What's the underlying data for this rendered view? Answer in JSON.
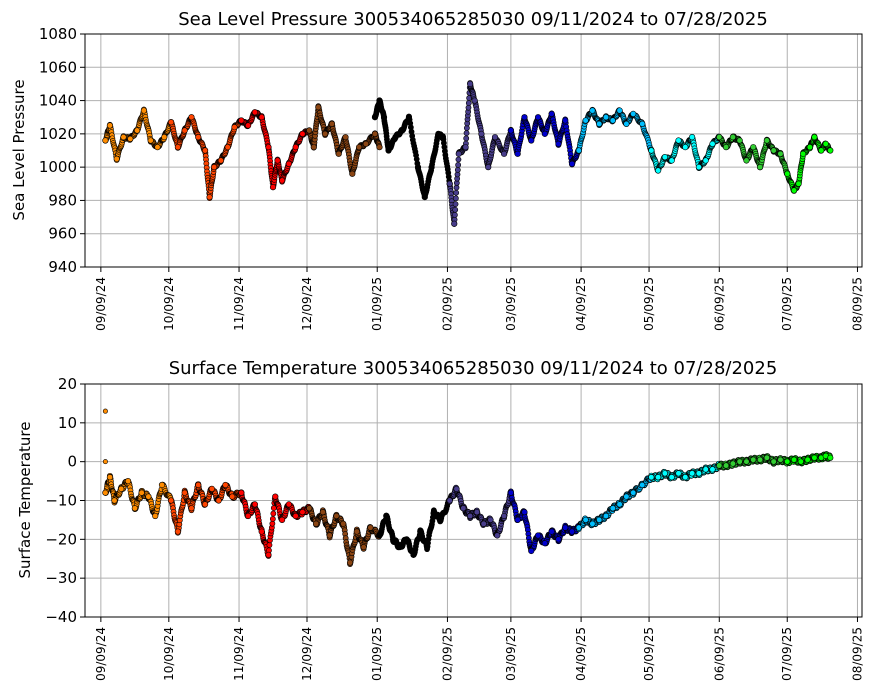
{
  "chart_data": [
    {
      "type": "scatter",
      "title": "Sea Level Pressure 300534065285030  09/11/2024 to 07/28/2025",
      "xlabel": "",
      "ylabel": "Sea Level Pressure",
      "ylim": [
        940,
        1080
      ],
      "yticks": [
        940,
        960,
        980,
        1000,
        1020,
        1040,
        1060,
        1080
      ],
      "xlim": [
        "2024-09-02",
        "2025-08-11"
      ],
      "xticks": [
        "2024-09-09",
        "2024-10-09",
        "2024-11-09",
        "2024-12-09",
        "2025-01-09",
        "2025-02-09",
        "2025-03-09",
        "2025-04-09",
        "2025-05-09",
        "2025-06-09",
        "2025-07-09",
        "2025-08-09"
      ],
      "xtick_labels": [
        "09/09/24",
        "10/09/24",
        "11/09/24",
        "12/09/24",
        "01/09/25",
        "02/09/25",
        "03/09/25",
        "04/09/25",
        "05/09/25",
        "06/09/25",
        "07/09/25",
        "08/09/25"
      ],
      "grid": true,
      "marker_outline": "#000000",
      "series": [
        {
          "color": "#ff8c00",
          "x": [
            "2024-09-11",
            "2024-09-13",
            "2024-09-16",
            "2024-09-19",
            "2024-09-22",
            "2024-09-25",
            "2024-09-28",
            "2024-10-01",
            "2024-10-04",
            "2024-10-07",
            "2024-10-10"
          ],
          "y": [
            1016,
            1025,
            1005,
            1018,
            1017,
            1022,
            1034,
            1016,
            1012,
            1018,
            1027
          ]
        },
        {
          "color": "#ff4500",
          "x": [
            "2024-10-10",
            "2024-10-13",
            "2024-10-16",
            "2024-10-19",
            "2024-10-22",
            "2024-10-25",
            "2024-10-27",
            "2024-10-29",
            "2024-11-01",
            "2024-11-04",
            "2024-11-07",
            "2024-11-10"
          ],
          "y": [
            1027,
            1012,
            1022,
            1030,
            1018,
            1010,
            982,
            1000,
            1004,
            1012,
            1024,
            1028
          ]
        },
        {
          "color": "#ff0000",
          "x": [
            "2024-11-10",
            "2024-11-13",
            "2024-11-16",
            "2024-11-19",
            "2024-11-22",
            "2024-11-24",
            "2024-11-26",
            "2024-11-28",
            "2024-12-01",
            "2024-12-04",
            "2024-12-07",
            "2024-12-10"
          ],
          "y": [
            1028,
            1025,
            1033,
            1030,
            1012,
            988,
            1004,
            992,
            1002,
            1012,
            1020,
            1022
          ]
        },
        {
          "color": "#8b4513",
          "x": [
            "2024-12-10",
            "2024-12-12",
            "2024-12-14",
            "2024-12-17",
            "2024-12-20",
            "2024-12-23",
            "2024-12-26",
            "2024-12-29",
            "2025-01-01",
            "2025-01-04",
            "2025-01-08",
            "2025-01-10"
          ],
          "y": [
            1022,
            1012,
            1036,
            1020,
            1026,
            1008,
            1018,
            996,
            1012,
            1014,
            1020,
            1012
          ]
        },
        {
          "color": "#000000",
          "x": [
            "2025-01-08",
            "2025-01-10",
            "2025-01-12",
            "2025-01-14",
            "2025-01-17",
            "2025-01-20",
            "2025-01-23",
            "2025-01-27",
            "2025-01-30",
            "2025-02-02",
            "2025-02-05",
            "2025-02-07",
            "2025-02-10"
          ],
          "y": [
            1030,
            1040,
            1030,
            1010,
            1018,
            1022,
            1030,
            1000,
            982,
            1000,
            1020,
            1018,
            990
          ]
        },
        {
          "color": "#483d8b",
          "x": [
            "2025-02-10",
            "2025-02-12",
            "2025-02-14",
            "2025-02-17",
            "2025-02-19",
            "2025-02-21",
            "2025-02-24",
            "2025-02-27",
            "2025-03-02",
            "2025-03-06",
            "2025-03-09"
          ],
          "y": [
            990,
            966,
            1008,
            1012,
            1050,
            1040,
            1020,
            1000,
            1018,
            1008,
            1022
          ]
        },
        {
          "color": "#0000cd",
          "x": [
            "2025-03-09",
            "2025-03-12",
            "2025-03-15",
            "2025-03-18",
            "2025-03-21",
            "2025-03-24",
            "2025-03-27",
            "2025-03-30",
            "2025-04-02",
            "2025-04-05",
            "2025-04-08"
          ],
          "y": [
            1022,
            1008,
            1030,
            1016,
            1030,
            1020,
            1032,
            1014,
            1028,
            1002,
            1010
          ]
        },
        {
          "color": "#00bfff",
          "x": [
            "2025-04-08",
            "2025-04-11",
            "2025-04-14",
            "2025-04-17",
            "2025-04-20",
            "2025-04-23",
            "2025-04-26",
            "2025-04-29",
            "2025-05-02",
            "2025-05-06",
            "2025-05-10"
          ],
          "y": [
            1010,
            1028,
            1034,
            1026,
            1030,
            1028,
            1034,
            1026,
            1032,
            1026,
            1010
          ]
        },
        {
          "color": "#00ffff",
          "x": [
            "2025-05-10",
            "2025-05-13",
            "2025-05-16",
            "2025-05-19",
            "2025-05-22",
            "2025-05-25",
            "2025-05-28",
            "2025-05-31",
            "2025-06-03",
            "2025-06-06",
            "2025-06-09"
          ],
          "y": [
            1010,
            998,
            1006,
            1004,
            1016,
            1012,
            1018,
            1000,
            1004,
            1014,
            1018
          ]
        },
        {
          "color": "#32cd32",
          "x": [
            "2025-06-09",
            "2025-06-12",
            "2025-06-15",
            "2025-06-18",
            "2025-06-21",
            "2025-06-24",
            "2025-06-27",
            "2025-06-30",
            "2025-07-03",
            "2025-07-06",
            "2025-07-09"
          ],
          "y": [
            1018,
            1012,
            1018,
            1016,
            1004,
            1012,
            1000,
            1016,
            1010,
            1008,
            996
          ]
        },
        {
          "color": "#00ff00",
          "x": [
            "2025-07-09",
            "2025-07-12",
            "2025-07-14",
            "2025-07-16",
            "2025-07-19",
            "2025-07-21",
            "2025-07-24",
            "2025-07-26",
            "2025-07-28"
          ],
          "y": [
            996,
            986,
            990,
            1008,
            1012,
            1018,
            1010,
            1014,
            1010
          ]
        }
      ]
    },
    {
      "type": "scatter",
      "title": "Surface Temperature 300534065285030  09/11/2024 to 07/28/2025",
      "xlabel": "",
      "ylabel": "Surface Temperature",
      "ylim": [
        -40,
        20
      ],
      "yticks": [
        -40,
        -30,
        -20,
        -10,
        0,
        10,
        20
      ],
      "ytick_labels": [
        "−40",
        "−30",
        "−20",
        "−10",
        "0",
        "10",
        "20"
      ],
      "xlim": [
        "2024-09-02",
        "2025-08-11"
      ],
      "xticks": [
        "2024-09-09",
        "2024-10-09",
        "2024-11-09",
        "2024-12-09",
        "2025-01-09",
        "2025-02-09",
        "2025-03-09",
        "2025-04-09",
        "2025-05-09",
        "2025-06-09",
        "2025-07-09",
        "2025-08-09"
      ],
      "xtick_labels": [
        "09/09/24",
        "10/09/24",
        "11/09/24",
        "12/09/24",
        "01/09/25",
        "02/09/25",
        "03/09/25",
        "04/09/25",
        "05/09/25",
        "06/09/25",
        "07/09/25",
        "08/09/25"
      ],
      "grid": true,
      "marker_outline": "#000000",
      "outliers": [
        {
          "x": "2024-09-11",
          "y": 13,
          "color": "#ff8c00"
        },
        {
          "x": "2024-09-11",
          "y": 0,
          "color": "#ff8c00"
        }
      ],
      "series": [
        {
          "color": "#ff8c00",
          "x": [
            "2024-09-11",
            "2024-09-13",
            "2024-09-15",
            "2024-09-18",
            "2024-09-21",
            "2024-09-24",
            "2024-09-27",
            "2024-09-30",
            "2024-10-03",
            "2024-10-06",
            "2024-10-10"
          ],
          "y": [
            -8,
            -4,
            -10,
            -7,
            -5,
            -12,
            -8,
            -9,
            -14,
            -6,
            -10
          ]
        },
        {
          "color": "#ff4500",
          "x": [
            "2024-10-10",
            "2024-10-13",
            "2024-10-16",
            "2024-10-19",
            "2024-10-22",
            "2024-10-25",
            "2024-10-28",
            "2024-10-31",
            "2024-11-03",
            "2024-11-06",
            "2024-11-10"
          ],
          "y": [
            -10,
            -18,
            -8,
            -12,
            -6,
            -11,
            -7,
            -10,
            -6,
            -9,
            -8
          ]
        },
        {
          "color": "#ff0000",
          "x": [
            "2024-11-10",
            "2024-11-13",
            "2024-11-16",
            "2024-11-19",
            "2024-11-22",
            "2024-11-25",
            "2024-11-28",
            "2024-12-01",
            "2024-12-04",
            "2024-12-07",
            "2024-12-10"
          ],
          "y": [
            -8,
            -14,
            -11,
            -18,
            -24,
            -9,
            -15,
            -11,
            -14,
            -13,
            -12
          ]
        },
        {
          "color": "#8b4513",
          "x": [
            "2024-12-10",
            "2024-12-13",
            "2024-12-16",
            "2024-12-19",
            "2024-12-22",
            "2024-12-25",
            "2024-12-28",
            "2024-12-31",
            "2025-01-03",
            "2025-01-06",
            "2025-01-10"
          ],
          "y": [
            -12,
            -16,
            -13,
            -19,
            -14,
            -16,
            -26,
            -18,
            -22,
            -17,
            -19
          ]
        },
        {
          "color": "#000000",
          "x": [
            "2025-01-10",
            "2025-01-13",
            "2025-01-16",
            "2025-01-19",
            "2025-01-22",
            "2025-01-25",
            "2025-01-28",
            "2025-01-31",
            "2025-02-03",
            "2025-02-06",
            "2025-02-10"
          ],
          "y": [
            -19,
            -14,
            -20,
            -22,
            -20,
            -24,
            -18,
            -22,
            -13,
            -15,
            -10
          ]
        },
        {
          "color": "#483d8b",
          "x": [
            "2025-02-10",
            "2025-02-13",
            "2025-02-16",
            "2025-02-19",
            "2025-02-22",
            "2025-02-25",
            "2025-02-28",
            "2025-03-03",
            "2025-03-06",
            "2025-03-09"
          ],
          "y": [
            -10,
            -7,
            -12,
            -14,
            -13,
            -16,
            -15,
            -19,
            -14,
            -8
          ]
        },
        {
          "color": "#0000cd",
          "x": [
            "2025-03-09",
            "2025-03-12",
            "2025-03-15",
            "2025-03-18",
            "2025-03-21",
            "2025-03-24",
            "2025-03-27",
            "2025-03-30",
            "2025-04-02",
            "2025-04-05",
            "2025-04-08"
          ],
          "y": [
            -8,
            -15,
            -13,
            -23,
            -19,
            -21,
            -18,
            -20,
            -17,
            -18,
            -17
          ]
        },
        {
          "color": "#00bfff",
          "x": [
            "2025-04-08",
            "2025-04-11",
            "2025-04-14",
            "2025-04-17",
            "2025-04-20",
            "2025-04-23",
            "2025-04-26",
            "2025-04-29",
            "2025-05-02",
            "2025-05-06",
            "2025-05-10"
          ],
          "y": [
            -17,
            -15,
            -16,
            -15,
            -14,
            -12,
            -11,
            -9,
            -8,
            -6,
            -4
          ]
        },
        {
          "color": "#00ffff",
          "x": [
            "2025-05-10",
            "2025-05-13",
            "2025-05-16",
            "2025-05-19",
            "2025-05-22",
            "2025-05-25",
            "2025-05-28",
            "2025-05-31",
            "2025-06-03",
            "2025-06-06",
            "2025-06-09"
          ],
          "y": [
            -4,
            -4,
            -3,
            -4,
            -3,
            -4,
            -3,
            -3,
            -2,
            -2,
            -1
          ]
        },
        {
          "color": "#32cd32",
          "x": [
            "2025-06-09",
            "2025-06-12",
            "2025-06-15",
            "2025-06-18",
            "2025-06-21",
            "2025-06-24",
            "2025-06-27",
            "2025-06-30",
            "2025-07-03",
            "2025-07-06",
            "2025-07-09"
          ],
          "y": [
            -1,
            -1,
            -0.5,
            0,
            0,
            0.5,
            0.5,
            1,
            0,
            0.5,
            0
          ]
        },
        {
          "color": "#00ff00",
          "x": [
            "2025-07-09",
            "2025-07-12",
            "2025-07-15",
            "2025-07-18",
            "2025-07-21",
            "2025-07-24",
            "2025-07-26",
            "2025-07-28"
          ],
          "y": [
            0,
            0.5,
            0,
            0.5,
            1,
            1,
            1.5,
            1
          ]
        }
      ]
    }
  ]
}
